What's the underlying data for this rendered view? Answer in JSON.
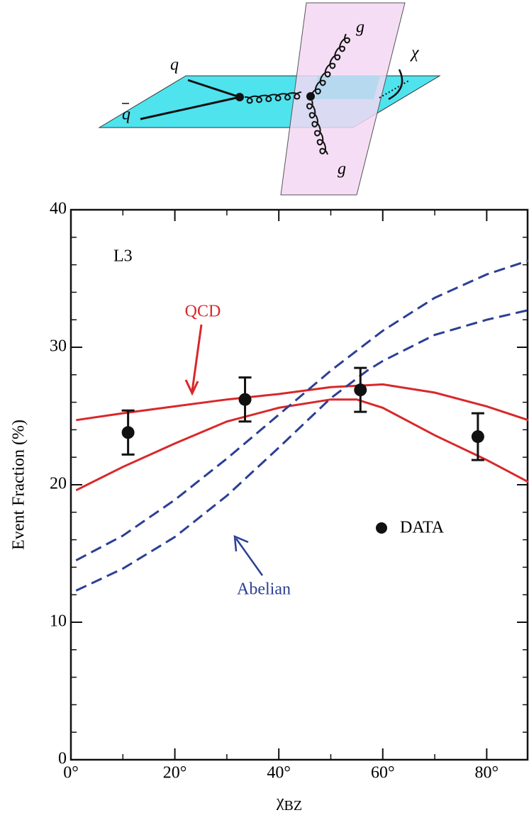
{
  "diagram": {
    "labels": {
      "q": "q",
      "qbar": "q",
      "g_top": "g",
      "g_bottom": "g",
      "angle": "χ"
    }
  },
  "chart_data": {
    "type": "line",
    "x_label": {
      "symbol": "χ",
      "subscript": "BZ"
    },
    "y_label": "Event Fraction (%)",
    "annotations": [
      "L3",
      "QCD",
      "Abelian"
    ],
    "xlim": [
      0,
      88
    ],
    "ylim": [
      0,
      40
    ],
    "xticks": [
      {
        "value": 0,
        "label": "0°"
      },
      {
        "value": 20,
        "label": "20°"
      },
      {
        "value": 40,
        "label": "40°"
      },
      {
        "value": 60,
        "label": "60°"
      },
      {
        "value": 80,
        "label": "80°"
      }
    ],
    "xticks_minor": [
      10,
      30,
      50,
      70
    ],
    "yticks": [
      0,
      10,
      20,
      30,
      40
    ],
    "yticks_minor": [
      2,
      4,
      6,
      8,
      12,
      14,
      16,
      18,
      22,
      24,
      26,
      28,
      32,
      34,
      36,
      38
    ],
    "series": [
      {
        "name": "DATA",
        "color": "#111111",
        "x": [
          11,
          33.5,
          55.7,
          78.3
        ],
        "values": [
          23.8,
          26.2,
          26.9,
          23.5
        ],
        "errors": [
          1.6,
          1.6,
          1.6,
          1.7
        ]
      }
    ],
    "curves": [
      {
        "color": "#d9282a",
        "dashed": false,
        "x": [
          1,
          10,
          20,
          30,
          40,
          50,
          60,
          70,
          80,
          88
        ],
        "values": [
          24.7,
          25.2,
          25.7,
          26.2,
          26.6,
          27.1,
          27.3,
          26.7,
          25.7,
          24.7
        ]
      },
      {
        "color": "#d9282a",
        "dashed": false,
        "x": [
          1,
          10,
          20,
          30,
          40,
          50,
          55,
          60,
          70,
          80,
          88
        ],
        "values": [
          19.6,
          21.3,
          23.0,
          24.6,
          25.6,
          26.2,
          26.2,
          25.6,
          23.6,
          21.8,
          20.2
        ]
      },
      {
        "color": "#2b3f94",
        "dashed": true,
        "x": [
          1,
          10,
          20,
          30,
          40,
          50,
          60,
          70,
          80,
          88
        ],
        "values": [
          14.5,
          16.3,
          18.9,
          21.9,
          25.1,
          28.3,
          31.2,
          33.6,
          35.3,
          36.3
        ]
      },
      {
        "color": "#2b3f94",
        "dashed": true,
        "x": [
          1,
          10,
          20,
          30,
          40,
          50,
          57,
          60,
          70,
          80,
          88
        ],
        "values": [
          12.3,
          13.9,
          16.2,
          19.2,
          22.7,
          26.3,
          28.3,
          29.0,
          30.9,
          32.0,
          32.7
        ]
      }
    ]
  }
}
